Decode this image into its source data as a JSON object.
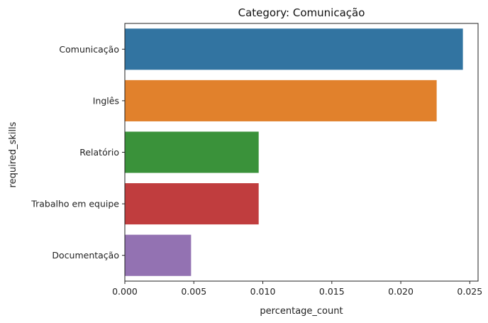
{
  "chart_data": {
    "type": "bar",
    "orientation": "horizontal",
    "title": "Category: Comunicação",
    "xlabel": "percentage_count",
    "ylabel": "required_skills",
    "categories": [
      "Comunicação",
      "Inglês",
      "Relatório",
      "Trabalho em equipe",
      "Documentação"
    ],
    "values": [
      0.0245,
      0.0226,
      0.0097,
      0.0097,
      0.0048
    ],
    "colors": [
      "#3274a1",
      "#e1812c",
      "#3a923a",
      "#c03d3e",
      "#9372b2"
    ],
    "xlim": [
      0,
      0.0256
    ],
    "xticks": [
      0.0,
      0.005,
      0.01,
      0.015,
      0.02,
      0.025
    ],
    "xtick_labels": [
      "0.000",
      "0.005",
      "0.010",
      "0.015",
      "0.020",
      "0.025"
    ],
    "grid": false,
    "legend": "none"
  }
}
